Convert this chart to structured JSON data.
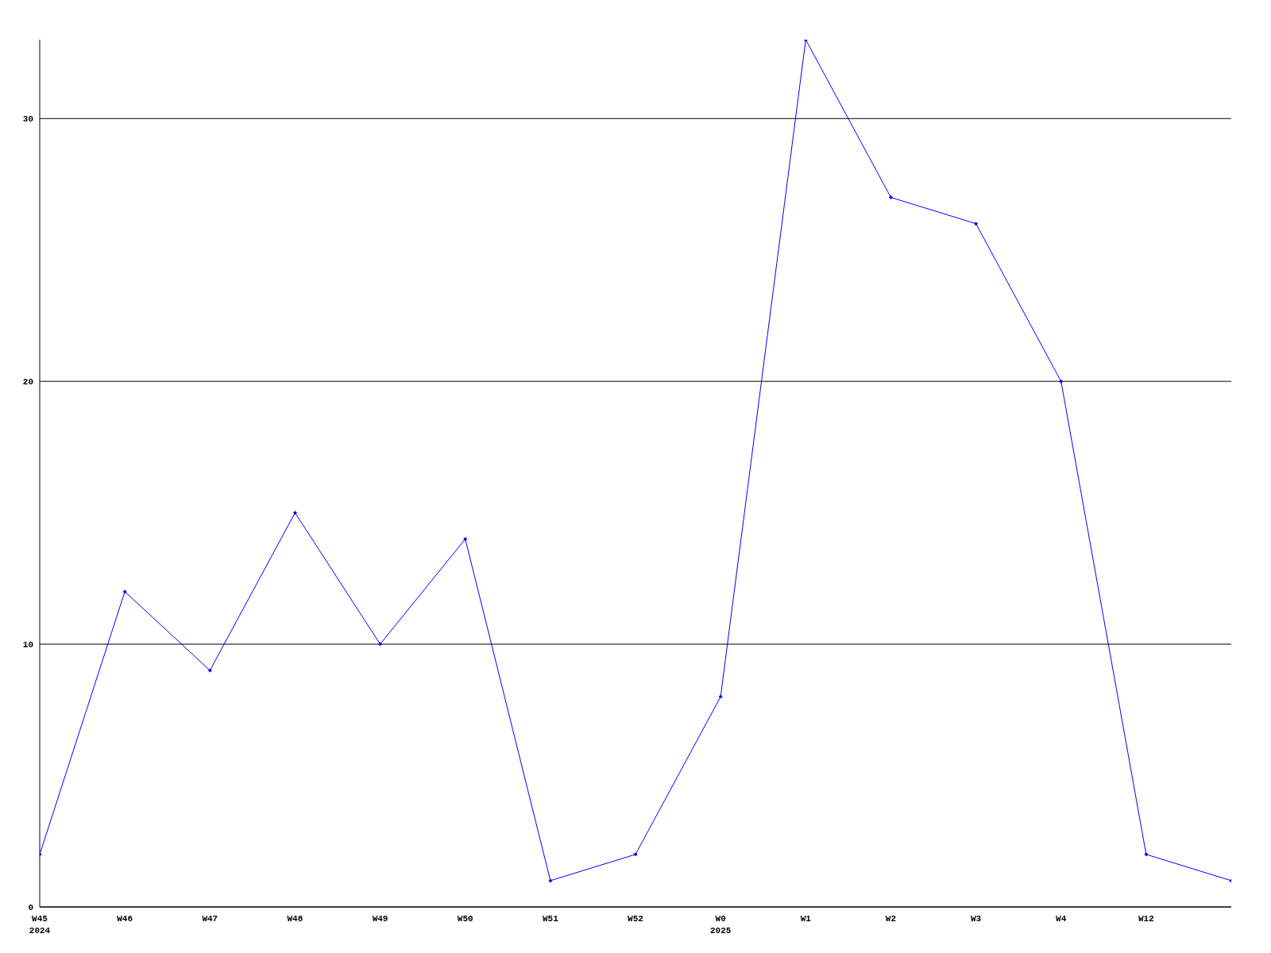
{
  "chart_data": {
    "type": "line",
    "categories": [
      "W45\n2024",
      "W46",
      "W47",
      "W48",
      "W49",
      "W50",
      "W51",
      "W52",
      "W0\n2025",
      "W1",
      "W2",
      "W3",
      "W4",
      "W12",
      null
    ],
    "series": [
      {
        "color": "#0000ff",
        "values": [
          2,
          12,
          9,
          15,
          10,
          14,
          1,
          2,
          8,
          33,
          27,
          26,
          20,
          2,
          1
        ]
      }
    ],
    "ylim": [
      0,
      33
    ],
    "yticks": [
      0,
      10,
      20,
      30
    ],
    "grid": "y",
    "marker": "diamond",
    "line_style": "solid"
  }
}
